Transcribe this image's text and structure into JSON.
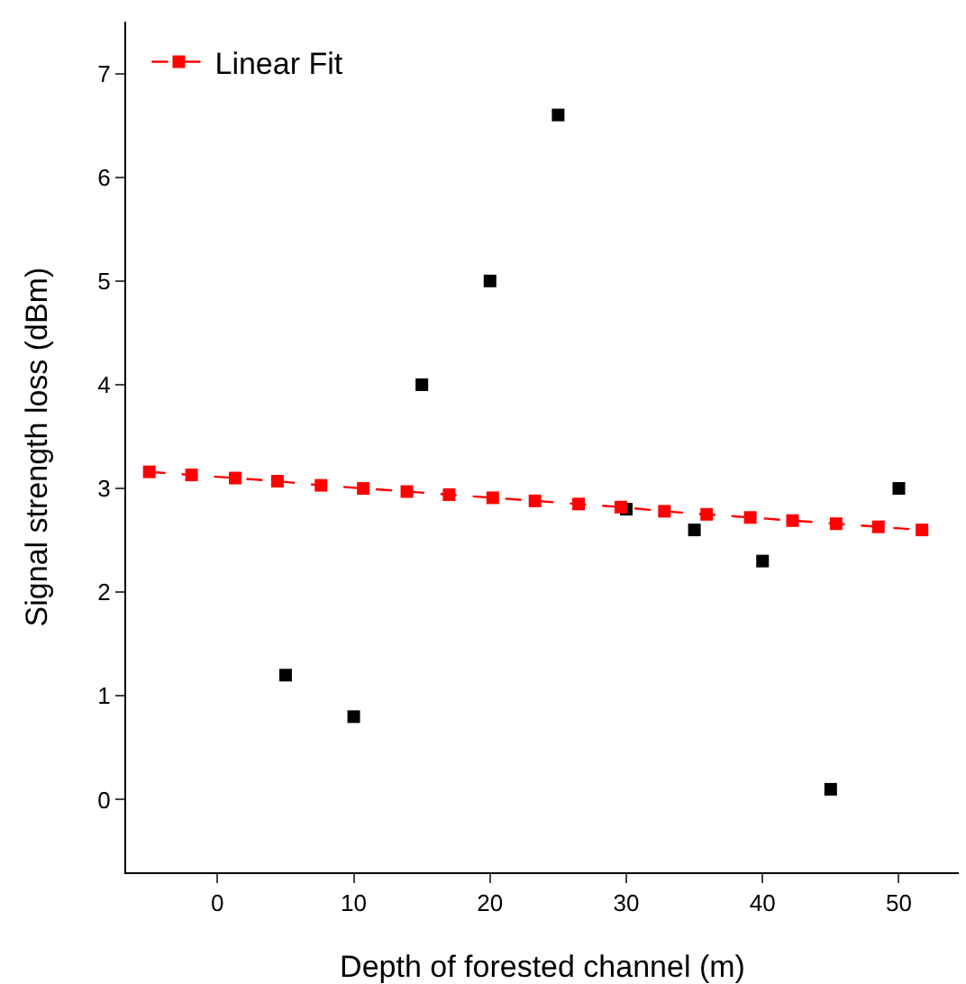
{
  "chart_data": {
    "type": "scatter",
    "xlabel": "Depth of forested channel (m)",
    "ylabel": "Signal strength loss (dBm)",
    "xlim": [
      -6.7,
      54.4
    ],
    "ylim": [
      -0.7,
      7.5
    ],
    "xticks": [
      0,
      10,
      20,
      30,
      40,
      50
    ],
    "yticks": [
      0,
      1,
      2,
      3,
      4,
      5,
      6,
      7
    ],
    "grid": false,
    "legend": "top left",
    "series": [
      {
        "color": "#000000",
        "marker": "square",
        "x": [
          5,
          10,
          15,
          20,
          25,
          30,
          35,
          40,
          45,
          50
        ],
        "values": [
          1.2,
          0.8,
          4.0,
          5.0,
          6.6,
          2.8,
          2.6,
          2.3,
          0.1,
          3.0
        ]
      },
      {
        "type": "line",
        "name": "Linear Fit",
        "color": "#ff0000",
        "marker": "square",
        "line_style": "dashed",
        "x": [
          -5,
          -1.9,
          1.3,
          4.4,
          7.6,
          10.7,
          13.9,
          17,
          20.2,
          23.3,
          26.5,
          29.6,
          32.8,
          35.9,
          39.1,
          42.2,
          45.4,
          48.5,
          51.7
        ],
        "values": [
          3.16,
          3.13,
          3.1,
          3.07,
          3.03,
          3.0,
          2.97,
          2.94,
          2.91,
          2.88,
          2.85,
          2.82,
          2.78,
          2.75,
          2.72,
          2.69,
          2.66,
          2.63,
          2.6
        ]
      }
    ]
  }
}
